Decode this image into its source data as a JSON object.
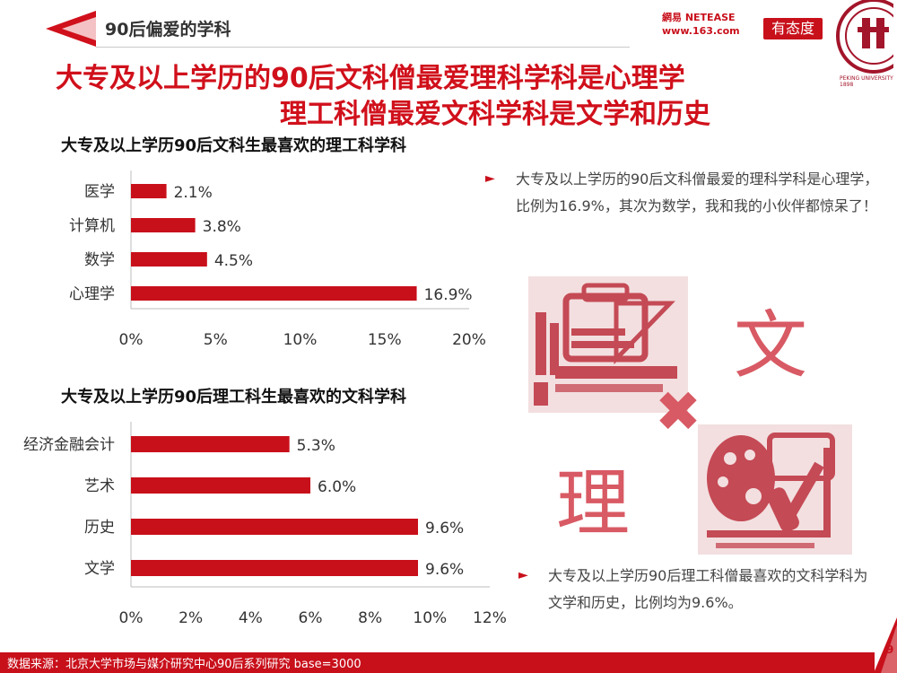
{
  "header": {
    "section_label": "90后偏爱的学科",
    "netease_logo_text": "網易 NETEASE www.163.com",
    "youtaidu_logo_text": "有态度",
    "pku_seal_text": "PEKING UNIVERSITY 1898"
  },
  "headline": {
    "line1": "大专及以上学历的90后文科僧最爱理科学科是心理学",
    "line2": "理工科僧最爱文科学科是文学和历史"
  },
  "chart_data": [
    {
      "type": "bar",
      "orientation": "horizontal",
      "title": "大专及以上学历90后文科生最喜欢的理工科学科",
      "categories": [
        "医学",
        "计算机",
        "数学",
        "心理学"
      ],
      "values": [
        2.1,
        3.8,
        4.5,
        16.9
      ],
      "value_labels": [
        "2.1%",
        "3.8%",
        "4.5%",
        "16.9%"
      ],
      "xlim": [
        0,
        20
      ],
      "xticks": [
        "0%",
        "5%",
        "10%",
        "15%",
        "20%"
      ],
      "grid": false,
      "bar_color": "#c8101b"
    },
    {
      "type": "bar",
      "orientation": "horizontal",
      "title": "大专及以上学历90后理工科生最喜欢的文科学科",
      "categories": [
        "经济金融会计",
        "艺术",
        "历史",
        "文学"
      ],
      "values": [
        5.3,
        6.0,
        9.6,
        9.6
      ],
      "value_labels": [
        "5.3%",
        "6.0%",
        "9.6%",
        "9.6%"
      ],
      "xlim": [
        0,
        12
      ],
      "xticks": [
        "0%",
        "2%",
        "4%",
        "6%",
        "8%",
        "10%",
        "12%"
      ],
      "grid": false,
      "bar_color": "#c8101b"
    }
  ],
  "notes": {
    "note1": "大专及以上学历的90后文科僧最爱的理科学科是心理学，比例为16.9%，其次为数学，我和我的小伙伴都惊呆了！",
    "note2": "大专及以上学历90后理工科僧最喜欢的文科学科为文学和历史，比例均为9.6%。",
    "bullet_glyph": "►"
  },
  "illustration": {
    "char_wen": "文",
    "char_li": "理",
    "cross_glyph": "✖",
    "icons": [
      "stationery-tools-icon",
      "art-palette-icon"
    ]
  },
  "footer": {
    "source": "数据来源：北京大学市场与媒介研究中心90后系列研究 base=3000",
    "page_number": "9"
  }
}
